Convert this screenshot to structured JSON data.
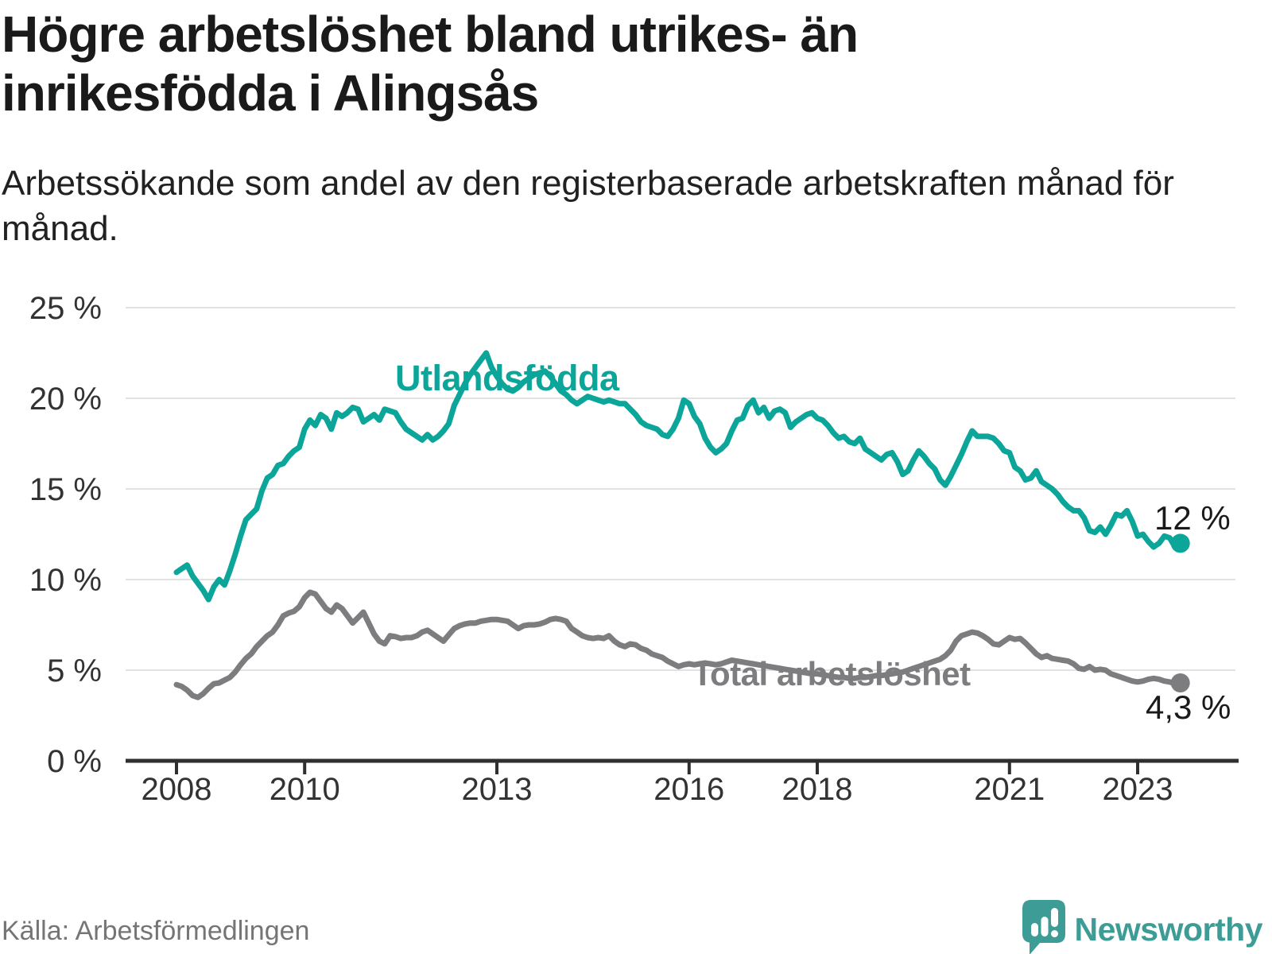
{
  "header": {
    "title_lines": [
      "Högre arbetslöshet bland utrikes- än",
      "inrikesfödda i Alingsås"
    ],
    "subtitle": "Arbetssökande som andel av den registerbaserade arbetskraften månad för månad."
  },
  "footer": {
    "source": "Källa: Arbetsförmedlingen",
    "brand": "Newsworthy"
  },
  "colors": {
    "foreign_born_line": "#0ca59a",
    "total_line": "#7d7d80",
    "grid": "#e2e2e2",
    "axis": "#2f2f2f",
    "axis_text": "#333333",
    "logo_teal": "#3d9d96"
  },
  "chart_data": {
    "type": "line",
    "title": "Högre arbetslöshet bland utrikes- än inrikesfödda i Alingsås",
    "subtitle": "Arbetssökande som andel av den registerbaserade arbetskraften månad för månad.",
    "xlabel": "",
    "ylabel": "",
    "grid": true,
    "legend_position": "inline-labels",
    "ylim": [
      0,
      25
    ],
    "y_ticks": [
      0,
      5,
      10,
      15,
      20,
      25
    ],
    "y_tick_labels": [
      "0 %",
      "5 %",
      "10 %",
      "15 %",
      "20 %",
      "25 %"
    ],
    "x_tick_years": [
      2008,
      2010,
      2013,
      2016,
      2018,
      2021,
      2023
    ],
    "x_tick_labels": [
      "2008",
      "2010",
      "2013",
      "2016",
      "2018",
      "2021",
      "2023"
    ],
    "frequency": "monthly",
    "start_month": "2008-01",
    "end_month": "2023-09",
    "series": [
      {
        "name": "Utlandsfödda",
        "color": "#0ca59a",
        "end_label": "12 %",
        "end_value": 12.0,
        "values": [
          10.4,
          10.6,
          10.8,
          10.2,
          9.8,
          9.4,
          8.9,
          9.6,
          10.0,
          9.7,
          10.5,
          11.4,
          12.4,
          13.3,
          13.6,
          13.9,
          14.9,
          15.6,
          15.8,
          16.3,
          16.4,
          16.8,
          17.1,
          17.3,
          18.3,
          18.8,
          18.5,
          19.1,
          18.9,
          18.3,
          19.2,
          19.0,
          19.2,
          19.5,
          19.4,
          18.7,
          18.9,
          19.1,
          18.8,
          19.4,
          19.3,
          19.2,
          18.7,
          18.3,
          18.1,
          17.9,
          17.7,
          18.0,
          17.7,
          17.9,
          18.2,
          18.6,
          19.6,
          20.2,
          20.8,
          21.3,
          21.7,
          22.1,
          22.5,
          21.7,
          21.2,
          20.8,
          20.5,
          20.4,
          20.6,
          20.9,
          21.1,
          21.3,
          21.4,
          21.5,
          21.2,
          20.8,
          20.4,
          20.2,
          19.9,
          19.7,
          19.9,
          20.1,
          20.0,
          19.9,
          19.8,
          19.9,
          19.8,
          19.7,
          19.7,
          19.4,
          19.1,
          18.7,
          18.5,
          18.4,
          18.3,
          18.0,
          17.9,
          18.3,
          18.9,
          19.9,
          19.7,
          19.0,
          18.6,
          17.8,
          17.3,
          17.0,
          17.2,
          17.5,
          18.2,
          18.8,
          18.9,
          19.6,
          19.9,
          19.2,
          19.5,
          18.9,
          19.3,
          19.4,
          19.2,
          18.4,
          18.7,
          18.9,
          19.1,
          19.2,
          18.9,
          18.8,
          18.5,
          18.1,
          17.8,
          17.9,
          17.6,
          17.5,
          17.8,
          17.2,
          17.0,
          16.8,
          16.6,
          16.9,
          17.0,
          16.5,
          15.8,
          16.0,
          16.6,
          17.1,
          16.8,
          16.4,
          16.1,
          15.5,
          15.2,
          15.7,
          16.3,
          16.9,
          17.6,
          18.2,
          17.9,
          17.9,
          17.9,
          17.8,
          17.5,
          17.1,
          17.0,
          16.2,
          16.0,
          15.5,
          15.6,
          16.0,
          15.4,
          15.2,
          15.0,
          14.7,
          14.3,
          14.0,
          13.8,
          13.8,
          13.4,
          12.7,
          12.6,
          12.9,
          12.5,
          13.0,
          13.6,
          13.5,
          13.8,
          13.2,
          12.4,
          12.5,
          12.1,
          11.8,
          12.0,
          12.4,
          12.3,
          11.8,
          12.0
        ]
      },
      {
        "name": "Total arbetslöshet",
        "color": "#7d7d80",
        "end_label": "4,3 %",
        "end_value": 4.3,
        "values": [
          4.2,
          4.1,
          3.9,
          3.6,
          3.5,
          3.7,
          4.0,
          4.25,
          4.3,
          4.45,
          4.6,
          4.9,
          5.3,
          5.65,
          5.9,
          6.3,
          6.6,
          6.9,
          7.1,
          7.5,
          8.0,
          8.15,
          8.25,
          8.5,
          9.0,
          9.3,
          9.2,
          8.8,
          8.4,
          8.2,
          8.6,
          8.4,
          8.0,
          7.6,
          7.9,
          8.2,
          7.6,
          7.0,
          6.6,
          6.45,
          6.9,
          6.85,
          6.75,
          6.8,
          6.8,
          6.9,
          7.1,
          7.2,
          7.0,
          6.8,
          6.6,
          6.95,
          7.3,
          7.45,
          7.55,
          7.6,
          7.6,
          7.7,
          7.75,
          7.8,
          7.8,
          7.75,
          7.7,
          7.5,
          7.3,
          7.45,
          7.5,
          7.5,
          7.55,
          7.65,
          7.8,
          7.85,
          7.8,
          7.7,
          7.3,
          7.1,
          6.9,
          6.8,
          6.75,
          6.8,
          6.75,
          6.9,
          6.6,
          6.4,
          6.3,
          6.45,
          6.4,
          6.2,
          6.1,
          5.9,
          5.8,
          5.7,
          5.5,
          5.35,
          5.2,
          5.3,
          5.35,
          5.3,
          5.35,
          5.4,
          5.35,
          5.3,
          5.35,
          5.45,
          5.55,
          5.5,
          5.45,
          5.4,
          5.35,
          5.3,
          5.25,
          5.2,
          5.15,
          5.1,
          5.05,
          5.0,
          4.95,
          4.9,
          4.85,
          4.8,
          4.8,
          4.75,
          4.7,
          4.65,
          4.6,
          4.6,
          4.55,
          4.55,
          4.6,
          4.6,
          4.65,
          4.7,
          4.7,
          4.75,
          4.8,
          4.85,
          4.9,
          5.0,
          5.1,
          5.2,
          5.3,
          5.4,
          5.5,
          5.6,
          5.8,
          6.1,
          6.6,
          6.9,
          7.0,
          7.1,
          7.05,
          6.9,
          6.7,
          6.45,
          6.4,
          6.6,
          6.8,
          6.7,
          6.75,
          6.5,
          6.2,
          5.9,
          5.7,
          5.8,
          5.65,
          5.6,
          5.55,
          5.5,
          5.35,
          5.1,
          5.05,
          5.2,
          5.0,
          5.05,
          5.0,
          4.8,
          4.7,
          4.6,
          4.5,
          4.4,
          4.35,
          4.4,
          4.5,
          4.55,
          4.5,
          4.4,
          4.35,
          4.25,
          4.3
        ]
      }
    ]
  }
}
